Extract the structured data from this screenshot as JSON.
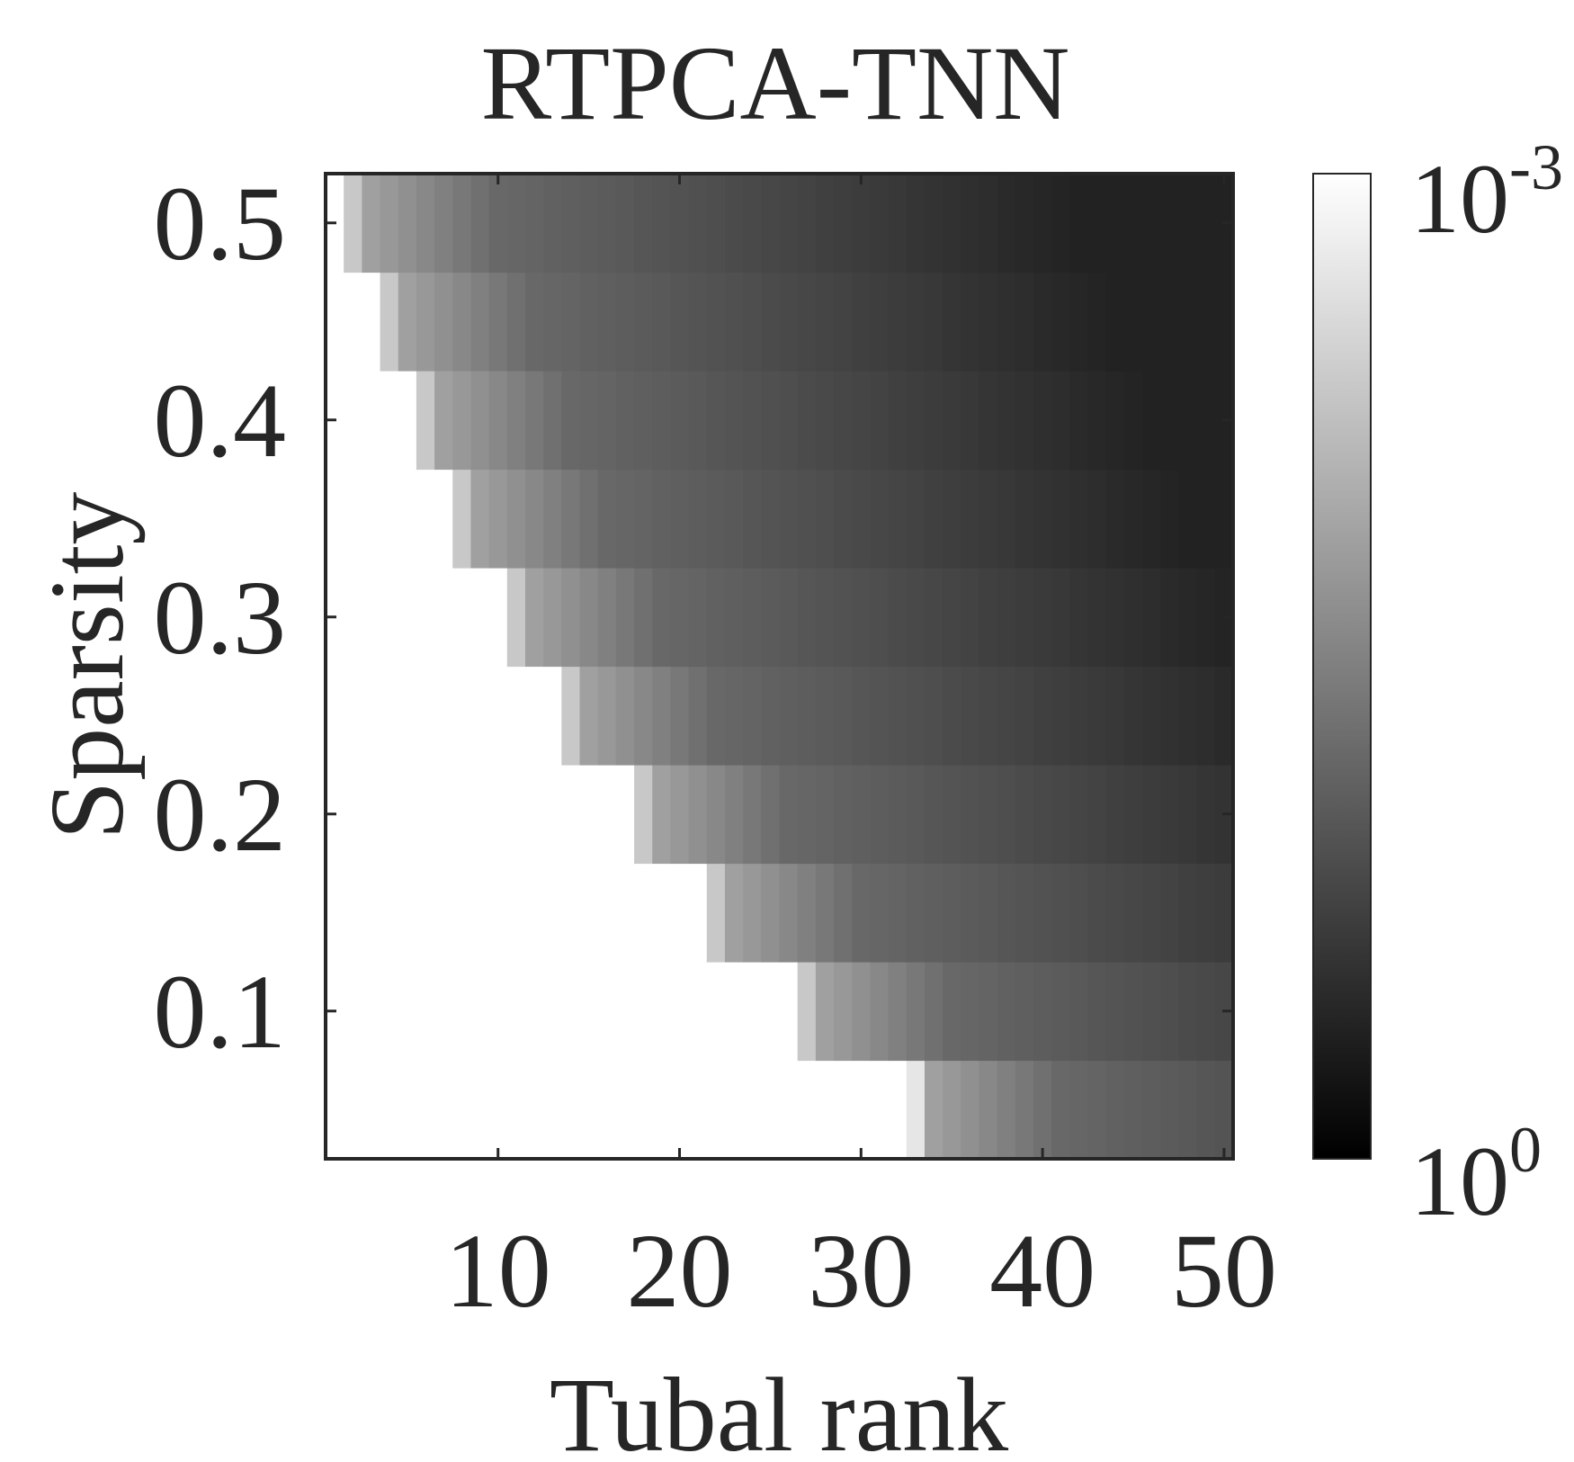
{
  "chart_data": {
    "type": "heatmap",
    "title": "RTPCA-TNN",
    "xlabel": "Tubal rank",
    "ylabel": "Sparsity",
    "x_range": [
      1,
      50
    ],
    "y_range": [
      0.025,
      0.525
    ],
    "xticks": [
      10,
      20,
      30,
      40,
      50
    ],
    "xtick_labels": [
      "10",
      "20",
      "30",
      "40",
      "50"
    ],
    "yticks": [
      0.1,
      0.2,
      0.3,
      0.4,
      0.5
    ],
    "ytick_labels": [
      "0.1",
      "0.2",
      "0.3",
      "0.4",
      "0.5"
    ],
    "sparsity_levels": [
      0.05,
      0.1,
      0.15,
      0.2,
      0.25,
      0.3,
      0.35,
      0.4,
      0.45,
      0.5
    ],
    "success_boundary_rank": [
      33,
      27,
      22,
      18,
      14,
      11,
      8,
      6,
      4,
      2
    ],
    "value_scale": "log",
    "cell_value_note": "error; white = below 1e-3, darker = larger",
    "colorbar": {
      "colormap": "gray",
      "top_label_base": "10",
      "top_label_exp": "-3",
      "bottom_label_base": "10",
      "bottom_label_exp": "0"
    },
    "grid": false
  }
}
